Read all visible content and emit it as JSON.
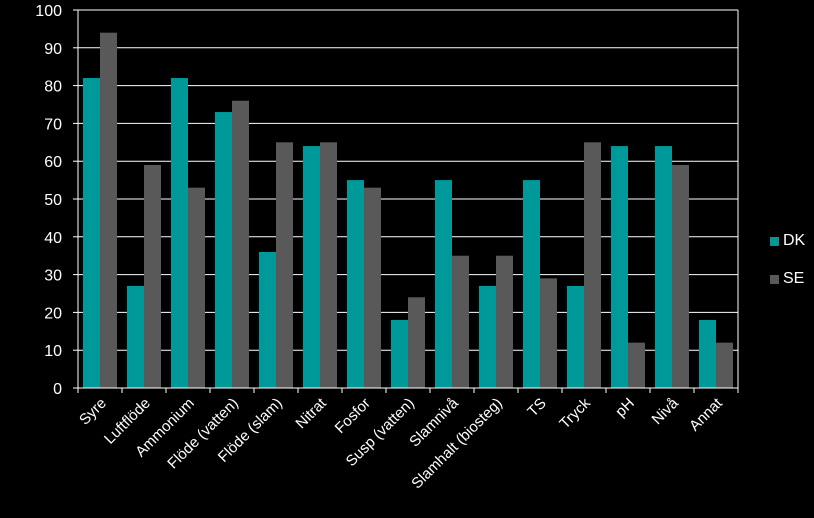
{
  "chart_data": {
    "type": "bar",
    "categories": [
      "Syre",
      "Luftflöde",
      "Ammonium",
      "Flöde (vatten)",
      "Flöde (slam)",
      "Nitrat",
      "Fosfor",
      "Susp (vatten)",
      "Slamnivå",
      "Slamhalt (biosteg)",
      "TS",
      "Tryck",
      "pH",
      "Nivå",
      "Annat"
    ],
    "series": [
      {
        "name": "DK",
        "color": "#009999",
        "values": [
          82,
          27,
          82,
          73,
          36,
          64,
          55,
          18,
          55,
          27,
          55,
          27,
          64,
          64,
          18
        ]
      },
      {
        "name": "SE",
        "color": "#595959",
        "values": [
          94,
          59,
          53,
          76,
          65,
          65,
          53,
          24,
          35,
          35,
          29,
          65,
          12,
          59,
          12
        ]
      }
    ],
    "ylim": [
      0,
      100
    ],
    "yticks": [
      0,
      10,
      20,
      30,
      40,
      50,
      60,
      70,
      80,
      90,
      100
    ],
    "grid": true,
    "legend": "right",
    "title": "",
    "xlabel": "",
    "ylabel": ""
  }
}
